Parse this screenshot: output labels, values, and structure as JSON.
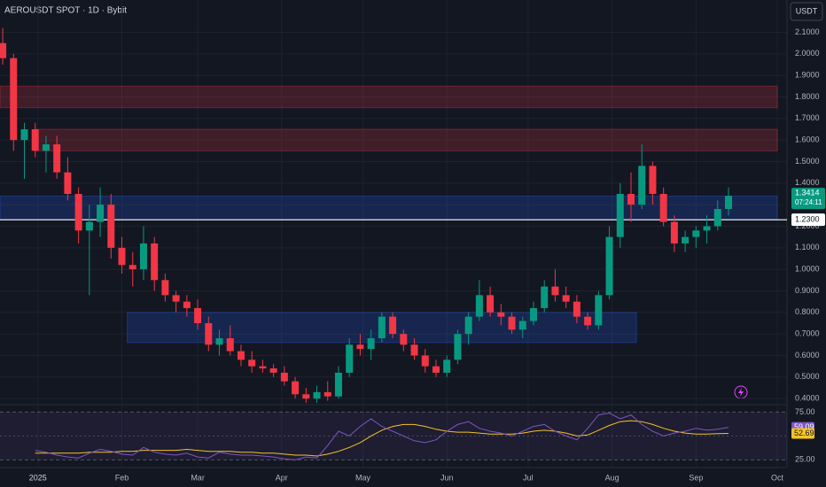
{
  "chart_data": {
    "type": "candlestick",
    "title": "AEROUSDT SPOT · 1D · Bybit",
    "currency": "USDT",
    "up_color": "#089981",
    "down_color": "#f23645",
    "x": [
      -13,
      -9,
      -5,
      -1,
      3,
      7,
      11,
      15,
      19,
      23,
      27,
      31,
      35,
      39,
      43,
      47,
      51,
      55,
      59,
      63,
      67,
      71,
      75,
      79,
      83,
      87,
      91,
      95,
      99,
      103,
      107,
      111,
      115,
      119,
      123,
      127,
      131,
      135,
      139,
      143,
      147,
      151,
      155,
      159,
      163,
      167,
      171,
      175,
      179,
      183,
      187,
      191,
      195,
      199,
      203,
      207,
      211,
      215,
      219,
      223,
      227,
      231,
      235,
      239,
      243,
      247,
      251,
      255
    ],
    "open": [
      2.05,
      1.98,
      1.6,
      1.65,
      1.55,
      1.58,
      1.45,
      1.35,
      1.18,
      1.22,
      1.3,
      1.1,
      1.02,
      1.0,
      1.12,
      0.95,
      0.88,
      0.85,
      0.82,
      0.75,
      0.65,
      0.68,
      0.62,
      0.58,
      0.55,
      0.54,
      0.52,
      0.48,
      0.42,
      0.4,
      0.43,
      0.41,
      0.52,
      0.65,
      0.63,
      0.68,
      0.78,
      0.7,
      0.65,
      0.6,
      0.55,
      0.52,
      0.58,
      0.7,
      0.78,
      0.88,
      0.8,
      0.78,
      0.72,
      0.76,
      0.82,
      0.92,
      0.88,
      0.85,
      0.78,
      0.74,
      0.88,
      1.15,
      1.35,
      1.3,
      1.48,
      1.35,
      1.22,
      1.12,
      1.15,
      1.18,
      1.2,
      1.28
    ],
    "high": [
      2.12,
      2.0,
      1.68,
      1.68,
      1.62,
      1.62,
      1.52,
      1.38,
      1.3,
      1.38,
      1.35,
      1.15,
      1.08,
      1.2,
      1.15,
      0.98,
      0.9,
      0.88,
      0.86,
      0.78,
      0.72,
      0.74,
      0.65,
      0.62,
      0.58,
      0.56,
      0.55,
      0.5,
      0.45,
      0.46,
      0.48,
      0.55,
      0.68,
      0.7,
      0.72,
      0.8,
      0.8,
      0.72,
      0.68,
      0.63,
      0.58,
      0.6,
      0.72,
      0.8,
      0.95,
      0.92,
      0.84,
      0.8,
      0.78,
      0.85,
      0.95,
      1.0,
      0.92,
      0.88,
      0.8,
      0.9,
      1.2,
      1.4,
      1.45,
      1.58,
      1.5,
      1.38,
      1.25,
      1.18,
      1.2,
      1.25,
      1.32,
      1.38
    ],
    "low": [
      1.95,
      1.55,
      1.42,
      1.52,
      1.45,
      1.42,
      1.32,
      1.12,
      0.88,
      1.15,
      1.05,
      0.98,
      0.92,
      0.95,
      0.9,
      0.85,
      0.8,
      0.78,
      0.72,
      0.62,
      0.6,
      0.6,
      0.55,
      0.52,
      0.52,
      0.5,
      0.46,
      0.4,
      0.38,
      0.38,
      0.39,
      0.4,
      0.5,
      0.6,
      0.58,
      0.66,
      0.68,
      0.62,
      0.58,
      0.52,
      0.5,
      0.5,
      0.56,
      0.65,
      0.76,
      0.78,
      0.74,
      0.7,
      0.68,
      0.74,
      0.8,
      0.85,
      0.82,
      0.75,
      0.72,
      0.72,
      0.86,
      1.1,
      1.22,
      1.28,
      1.3,
      1.2,
      1.08,
      1.08,
      1.1,
      1.12,
      1.18,
      1.25
    ],
    "close": [
      1.98,
      1.6,
      1.65,
      1.55,
      1.58,
      1.45,
      1.35,
      1.18,
      1.22,
      1.3,
      1.1,
      1.02,
      1.0,
      1.12,
      0.95,
      0.88,
      0.85,
      0.82,
      0.75,
      0.65,
      0.68,
      0.62,
      0.58,
      0.55,
      0.54,
      0.52,
      0.48,
      0.42,
      0.4,
      0.43,
      0.41,
      0.52,
      0.65,
      0.63,
      0.68,
      0.78,
      0.7,
      0.65,
      0.6,
      0.55,
      0.52,
      0.58,
      0.7,
      0.78,
      0.88,
      0.8,
      0.78,
      0.72,
      0.76,
      0.82,
      0.92,
      0.88,
      0.85,
      0.78,
      0.74,
      0.88,
      1.15,
      1.35,
      1.3,
      1.48,
      1.35,
      1.22,
      1.12,
      1.15,
      1.18,
      1.2,
      1.28,
      1.3414
    ],
    "xlim": [
      -14,
      273
    ],
    "xticks": [
      {
        "value": 0,
        "label": "2025"
      },
      {
        "value": 31,
        "label": "Feb"
      },
      {
        "value": 59,
        "label": "Mar"
      },
      {
        "value": 90,
        "label": "Apr"
      },
      {
        "value": 120,
        "label": "May"
      },
      {
        "value": 151,
        "label": "Jun"
      },
      {
        "value": 181,
        "label": "Jul"
      },
      {
        "value": 212,
        "label": "Aug"
      },
      {
        "value": 243,
        "label": "Sep"
      },
      {
        "value": 273,
        "label": "Oct"
      }
    ],
    "ylim": [
      0.38,
      2.25
    ],
    "yticks": [
      {
        "value": 0.4,
        "label": "0.4000"
      },
      {
        "value": 0.5,
        "label": "0.5000"
      },
      {
        "value": 0.6,
        "label": "0.6000"
      },
      {
        "value": 0.7,
        "label": "0.7000"
      },
      {
        "value": 0.8,
        "label": "0.8000"
      },
      {
        "value": 0.9,
        "label": "0.9000"
      },
      {
        "value": 1.0,
        "label": "1.0000"
      },
      {
        "value": 1.1,
        "label": "1.1000"
      },
      {
        "value": 1.2,
        "label": "1.2000"
      },
      {
        "value": 1.3,
        "label": "1.3000"
      },
      {
        "value": 1.4,
        "label": "1.4000"
      },
      {
        "value": 1.5,
        "label": "1.5000"
      },
      {
        "value": 1.6,
        "label": "1.6000"
      },
      {
        "value": 1.7,
        "label": "1.7000"
      },
      {
        "value": 1.8,
        "label": "1.8000"
      },
      {
        "value": 1.9,
        "label": "1.9000"
      },
      {
        "value": 2.0,
        "label": "2.0000"
      },
      {
        "value": 2.1,
        "label": "2.1000"
      }
    ],
    "grid": true,
    "zones": [
      {
        "x": [
          -14,
          273
        ],
        "y": [
          1.75,
          1.85
        ],
        "color": "#f23645"
      },
      {
        "x": [
          -1,
          273
        ],
        "y": [
          1.55,
          1.65
        ],
        "color": "#f23645"
      },
      {
        "x": [
          -14,
          273
        ],
        "y": [
          1.23,
          1.34
        ],
        "color": "#2962ff"
      },
      {
        "x": [
          33,
          221
        ],
        "y": [
          0.66,
          0.8
        ],
        "color": "#2962ff"
      }
    ],
    "hline": {
      "value": 1.23,
      "label": "1.2300"
    },
    "last_price": 1.3414,
    "countdown": "07:24:11",
    "rsi": {
      "ylim": [
        17,
        80
      ],
      "yticks": [
        {
          "value": 75,
          "label": "75.00"
        },
        {
          "value": 25,
          "label": "25.00"
        }
      ],
      "mid_level": 50,
      "color": "#7e57c2",
      "ma_color": "#f7c325",
      "values": [
        null,
        null,
        null,
        35,
        33,
        30,
        28,
        27,
        32,
        36,
        34,
        31,
        30,
        38,
        33,
        31,
        30,
        32,
        28,
        27,
        33,
        31,
        30,
        30,
        29,
        28,
        26,
        25,
        28,
        27,
        40,
        55,
        50,
        60,
        68,
        60,
        55,
        50,
        45,
        43,
        46,
        55,
        62,
        65,
        58,
        55,
        53,
        50,
        55,
        60,
        62,
        55,
        50,
        46,
        58,
        72,
        74,
        68,
        72,
        62,
        55,
        50,
        53,
        55,
        58,
        56,
        57,
        59.09
      ],
      "ma_values": [
        null,
        null,
        null,
        32,
        32,
        32,
        32,
        32,
        33,
        33,
        33,
        34,
        34,
        35,
        35,
        35,
        35,
        36,
        35,
        34,
        34,
        34,
        33,
        33,
        32,
        32,
        31,
        30,
        30,
        29,
        31,
        34,
        38,
        43,
        50,
        56,
        60,
        62,
        62,
        60,
        57,
        55,
        54,
        54,
        53,
        52,
        52,
        52,
        53,
        55,
        56,
        55,
        53,
        50,
        51,
        56,
        61,
        65,
        66,
        65,
        62,
        58,
        55,
        53,
        52,
        52,
        52.5,
        52.69
      ]
    }
  }
}
